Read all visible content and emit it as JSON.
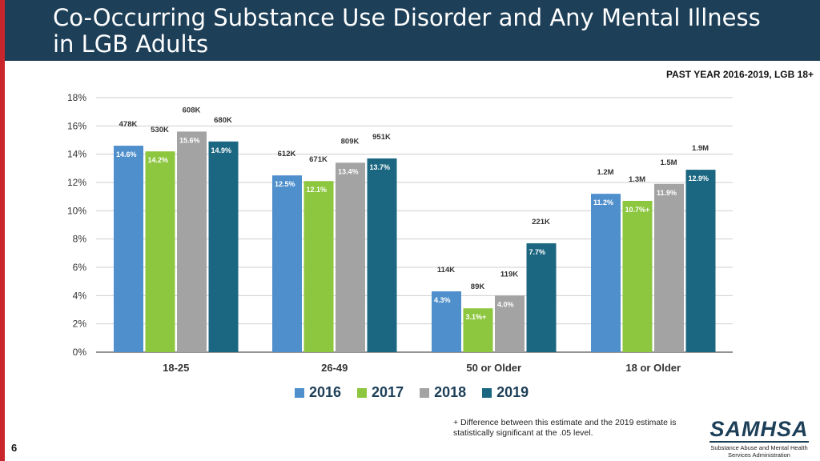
{
  "slide": {
    "title": "Co-Occurring Substance Use Disorder and Any Mental Illness in LGB Adults",
    "subtitle": "PAST YEAR 2016-2019, LGB 18+",
    "footnote": "+ Difference between this estimate and the 2019 estimate is statistically significant at the .05 level.",
    "page_number": "6",
    "logo": {
      "word": "SAMHSA",
      "sub": "Substance Abuse and Mental Health Services Administration"
    }
  },
  "chart_data": {
    "type": "bar",
    "title": "Co-Occurring Substance Use Disorder and Any Mental Illness in LGB Adults",
    "subtitle": "PAST YEAR 2016-2019, LGB 18+",
    "categories": [
      "18-25",
      "26-49",
      "50 or Older",
      "18 or Older"
    ],
    "ylim": [
      0,
      18
    ],
    "yticks": [
      0,
      2,
      4,
      6,
      8,
      10,
      12,
      14,
      16,
      18
    ],
    "ytick_labels": [
      "0%",
      "2%",
      "4%",
      "6%",
      "8%",
      "10%",
      "12%",
      "14%",
      "16%",
      "18%"
    ],
    "legend_position": "bottom",
    "series": [
      {
        "name": "2016",
        "color": "#4f8fcc",
        "values": [
          14.6,
          12.5,
          4.3,
          11.2
        ],
        "labels": [
          "14.6%",
          "12.5%",
          "4.3%",
          "11.2%"
        ],
        "counts": [
          "478K",
          "612K",
          "114K",
          "1.2M"
        ]
      },
      {
        "name": "2017",
        "color": "#8dc63f",
        "values": [
          14.2,
          12.1,
          3.1,
          10.7
        ],
        "labels": [
          "14.2%",
          "12.1%",
          "3.1%+",
          "10.7%+"
        ],
        "counts": [
          "530K",
          "671K",
          "89K",
          "1.3M"
        ]
      },
      {
        "name": "2018",
        "color": "#a3a3a3",
        "values": [
          15.6,
          13.4,
          4.0,
          11.9
        ],
        "labels": [
          "15.6%",
          "13.4%",
          "4.0%",
          "11.9%"
        ],
        "counts": [
          "608K",
          "809K",
          "119K",
          "1.5M"
        ]
      },
      {
        "name": "2019",
        "color": "#1b6681",
        "values": [
          14.9,
          13.7,
          7.7,
          12.9
        ],
        "labels": [
          "14.9%",
          "13.7%",
          "7.7%",
          "12.9%"
        ],
        "counts": [
          "680K",
          "951K",
          "221K",
          "1.9M"
        ]
      }
    ]
  }
}
